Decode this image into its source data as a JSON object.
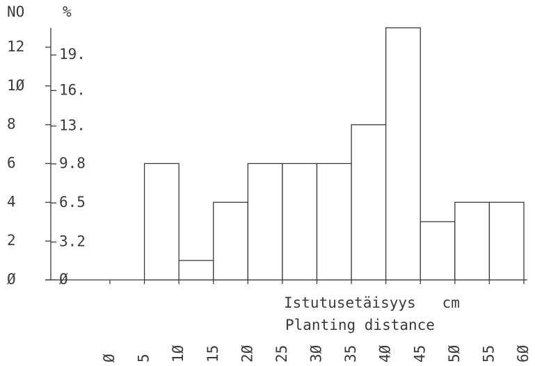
{
  "chart_data": {
    "type": "histogram",
    "y_label": "NO",
    "y2_label": "%",
    "x_label": "Istutusetäisyys   cm",
    "x_label_2": "Planting distance",
    "bins": [
      0,
      5,
      10,
      15,
      20,
      25,
      30,
      35,
      40,
      45,
      50,
      55,
      60
    ],
    "values": [
      0,
      6,
      1,
      4,
      6,
      6,
      6,
      8,
      13,
      3,
      4,
      4
    ],
    "color": "#ffffff",
    "xlim": [
      0,
      60
    ],
    "xticks": [
      {
        "value": 0,
        "label": "Ø"
      },
      5,
      {
        "value": 10,
        "label": "1Ø"
      },
      15,
      {
        "value": 20,
        "label": "2Ø"
      },
      25,
      {
        "value": 30,
        "label": "3Ø"
      },
      35,
      {
        "value": 40,
        "label": "4Ø"
      },
      45,
      {
        "value": 50,
        "label": "5Ø"
      },
      55,
      {
        "value": 60,
        "label": "6Ø"
      }
    ],
    "ylim": [
      0,
      13
    ],
    "yticks": [
      {
        "value": 0,
        "label": "Ø"
      },
      2,
      4,
      6,
      8,
      {
        "value": 10,
        "label": "1Ø"
      },
      12
    ],
    "y2lim": [
      0,
      21.3
    ],
    "y2ticks": [
      {
        "value": 0,
        "label": "Ø"
      },
      3.2,
      6.5,
      9.8,
      {
        "value": 13,
        "label": "13."
      },
      {
        "value": 16,
        "label": "16."
      },
      {
        "value": 19,
        "label": "19."
      }
    ]
  }
}
